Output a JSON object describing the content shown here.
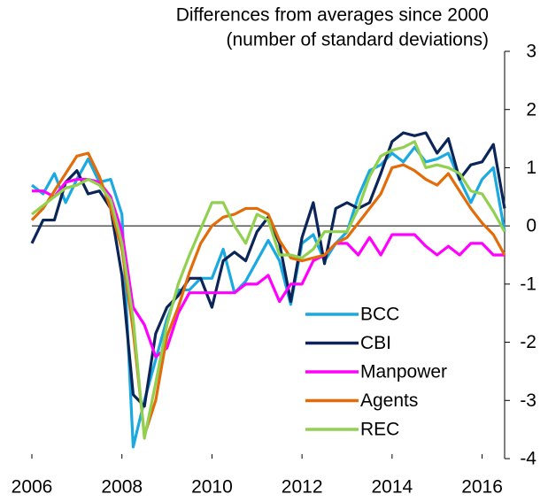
{
  "chart_data": {
    "type": "line",
    "title": "Differences from averages since 2000",
    "subtitle": "(number of standard deviations)",
    "x": [
      2006,
      2006.25,
      2006.5,
      2006.75,
      2007,
      2007.25,
      2007.5,
      2007.75,
      2008,
      2008.25,
      2008.5,
      2008.75,
      2009,
      2009.25,
      2009.5,
      2009.75,
      2010,
      2010.25,
      2010.5,
      2010.75,
      2011,
      2011.25,
      2011.5,
      2011.75,
      2012,
      2012.25,
      2012.5,
      2012.75,
      2013,
      2013.25,
      2013.5,
      2013.75,
      2014,
      2014.25,
      2014.5,
      2014.75,
      2015,
      2015.25,
      2015.5,
      2015.75,
      2016,
      2016.25,
      2016.5
    ],
    "series": [
      {
        "name": "BCC",
        "color": "#1aa9e0",
        "values": [
          0.7,
          0.55,
          0.9,
          0.4,
          0.8,
          1.15,
          0.75,
          0.8,
          0.2,
          -3.8,
          -3.0,
          -2.3,
          -1.6,
          -1.1,
          -1.1,
          -0.9,
          -0.9,
          -0.4,
          -1.15,
          -0.95,
          -0.6,
          -0.25,
          -0.6,
          -1.35,
          -0.3,
          -0.15,
          -0.6,
          -0.3,
          -0.1,
          0.5,
          0.95,
          1.05,
          1.25,
          1.1,
          1.35,
          1.1,
          1.15,
          1.25,
          0.8,
          0.4,
          0.8,
          1.0,
          -0.1
        ]
      },
      {
        "name": "CBI",
        "color": "#0b2559",
        "values": [
          -0.3,
          0.1,
          0.1,
          0.75,
          0.95,
          0.55,
          0.6,
          0.3,
          -0.85,
          -2.9,
          -3.1,
          -1.85,
          -1.4,
          -1.2,
          -0.9,
          -0.9,
          -1.4,
          -0.6,
          -0.45,
          -0.6,
          -0.1,
          0.15,
          -0.3,
          -1.3,
          -0.2,
          0.4,
          -0.65,
          0.3,
          0.4,
          0.3,
          0.4,
          0.9,
          1.45,
          1.6,
          1.55,
          1.6,
          1.25,
          1.5,
          0.8,
          1.05,
          1.1,
          1.4,
          0.3
        ]
      },
      {
        "name": "Manpower",
        "color": "#ff00ff",
        "values": [
          0.6,
          0.6,
          0.5,
          0.75,
          0.8,
          0.8,
          0.75,
          0.5,
          -0.1,
          -1.4,
          -1.7,
          -2.25,
          -2.1,
          -1.5,
          -1.15,
          -1.15,
          -1.15,
          -1.15,
          -1.15,
          -1.0,
          -1.0,
          -0.85,
          -1.3,
          -1.0,
          -1.0,
          -0.6,
          -0.5,
          -0.3,
          -0.3,
          -0.5,
          -0.2,
          -0.5,
          -0.15,
          -0.15,
          -0.15,
          -0.35,
          -0.5,
          -0.35,
          -0.5,
          -0.3,
          -0.3,
          -0.5,
          -0.5
        ]
      },
      {
        "name": "Agents",
        "color": "#e36c0a",
        "values": [
          0.1,
          0.3,
          0.6,
          0.9,
          1.2,
          1.25,
          0.85,
          0.3,
          -0.4,
          -1.8,
          -3.6,
          -3.0,
          -1.9,
          -1.4,
          -0.8,
          -0.3,
          0.0,
          0.15,
          0.2,
          0.3,
          0.3,
          0.2,
          -0.25,
          -0.55,
          -0.6,
          -0.55,
          -0.5,
          -0.3,
          -0.2,
          0.05,
          0.3,
          0.55,
          1.0,
          1.05,
          0.95,
          0.8,
          0.7,
          0.9,
          0.6,
          0.3,
          0.05,
          -0.15,
          -0.5
        ]
      },
      {
        "name": "REC",
        "color": "#92d050",
        "values": [
          0.2,
          0.35,
          0.5,
          0.65,
          0.7,
          0.8,
          0.7,
          0.45,
          -0.3,
          -1.6,
          -3.65,
          -2.7,
          -1.7,
          -1.0,
          -0.5,
          -0.05,
          0.4,
          0.4,
          0.0,
          -0.3,
          0.2,
          0.1,
          -0.5,
          -0.5,
          -0.55,
          -0.4,
          -0.1,
          -0.1,
          -0.1,
          0.3,
          0.85,
          1.2,
          1.3,
          1.35,
          1.45,
          1.0,
          1.05,
          1.0,
          0.9,
          0.6,
          0.55,
          0.25,
          -0.1
        ]
      }
    ],
    "xlim": [
      2006,
      2016.5
    ],
    "xticks": [
      2006,
      2008,
      2010,
      2012,
      2014,
      2016
    ],
    "ylim": [
      -4,
      3
    ],
    "yticks": [
      -4,
      -3,
      -2,
      -1,
      0,
      1,
      2,
      3
    ],
    "zero_line": true,
    "legend": "lower-center"
  }
}
